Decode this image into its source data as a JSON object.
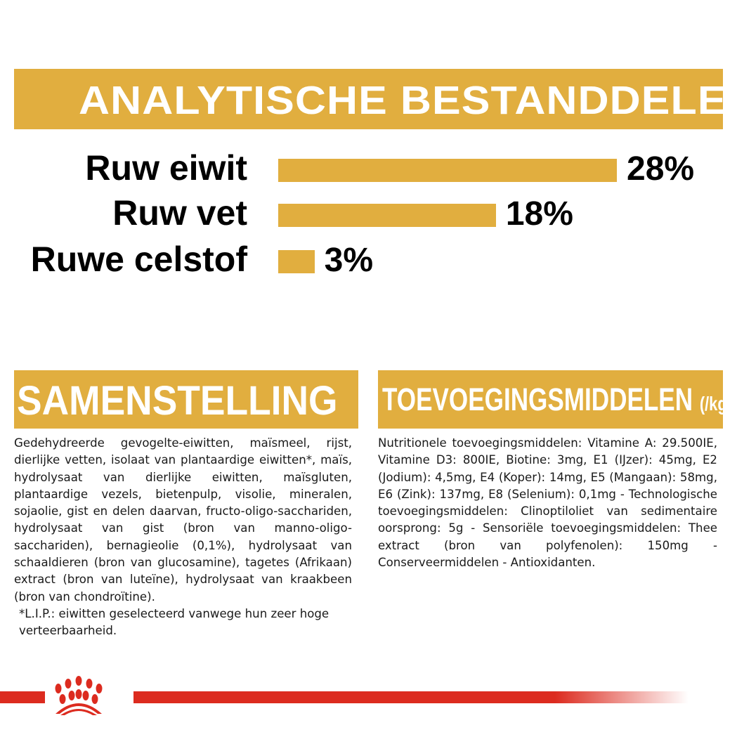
{
  "header": {
    "title": "ANALYTISCHE BESTANDDELEN"
  },
  "chart_data": {
    "type": "bar",
    "orientation": "horizontal",
    "categories": [
      "Ruw eiwit",
      "Ruw vet",
      "Ruwe celstof"
    ],
    "values": [
      28,
      18,
      3
    ],
    "data_labels": [
      "28%",
      "18%",
      "3%"
    ],
    "title": "ANALYTISCHE BESTANDDELEN",
    "xlabel": "",
    "ylabel": "",
    "grid": false,
    "bar_color": "#e1ae3f"
  },
  "composition": {
    "title": "SAMENSTELLING",
    "text": "Gedehydreerde gevogelte-eiwitten, maïsmeel, rijst, dierlijke vetten, isolaat van plantaardige eiwitten*, maïs, hydrolysaat van dierlijke eiwitten, maïsgluten, plantaardige vezels, bietenpulp, visolie, mineralen, sojaolie, gist en delen daarvan, fructo-oligo-sacchariden, hydrolysaat van gist (bron van manno-oligo-sacchariden), bernagieolie (0,1%), hydrolysaat van schaaldieren (bron van glucosamine), tagetes (Afrikaan) extract (bron van luteïne), hydrolysaat van kraakbeen (bron van chondroïtine).",
    "footnote": "*L.I.P.: eiwitten geselecteerd vanwege hun zeer hoge verteerbaarheid."
  },
  "additives": {
    "title": "TOEVOEGINGSMIDDELEN",
    "unit": "(/kg)",
    "text": "Nutritionele toevoegingsmiddelen: Vitamine A: 29.500IE, Vitamine D3: 800IE, Biotine: 3mg, E1 (IJzer): 45mg, E2 (Jodium): 4,5mg, E4 (Koper): 14mg, E5 (Mangaan): 58mg, E6 (Zink): 137mg, E8 (Selenium): 0,1mg - Technologische toevoegingsmiddelen: Clinoptiloliet van sedimentaire oorsprong: 5g - Sensoriële toevoegingsmiddelen: Thee extract (bron van polyfenolen): 150mg - Conserveermiddelen - Antioxidanten."
  },
  "colors": {
    "accent": "#e1ae3f",
    "brand_red": "#dc2b1f"
  },
  "footer": {
    "logo": "royal-crown-logo"
  }
}
